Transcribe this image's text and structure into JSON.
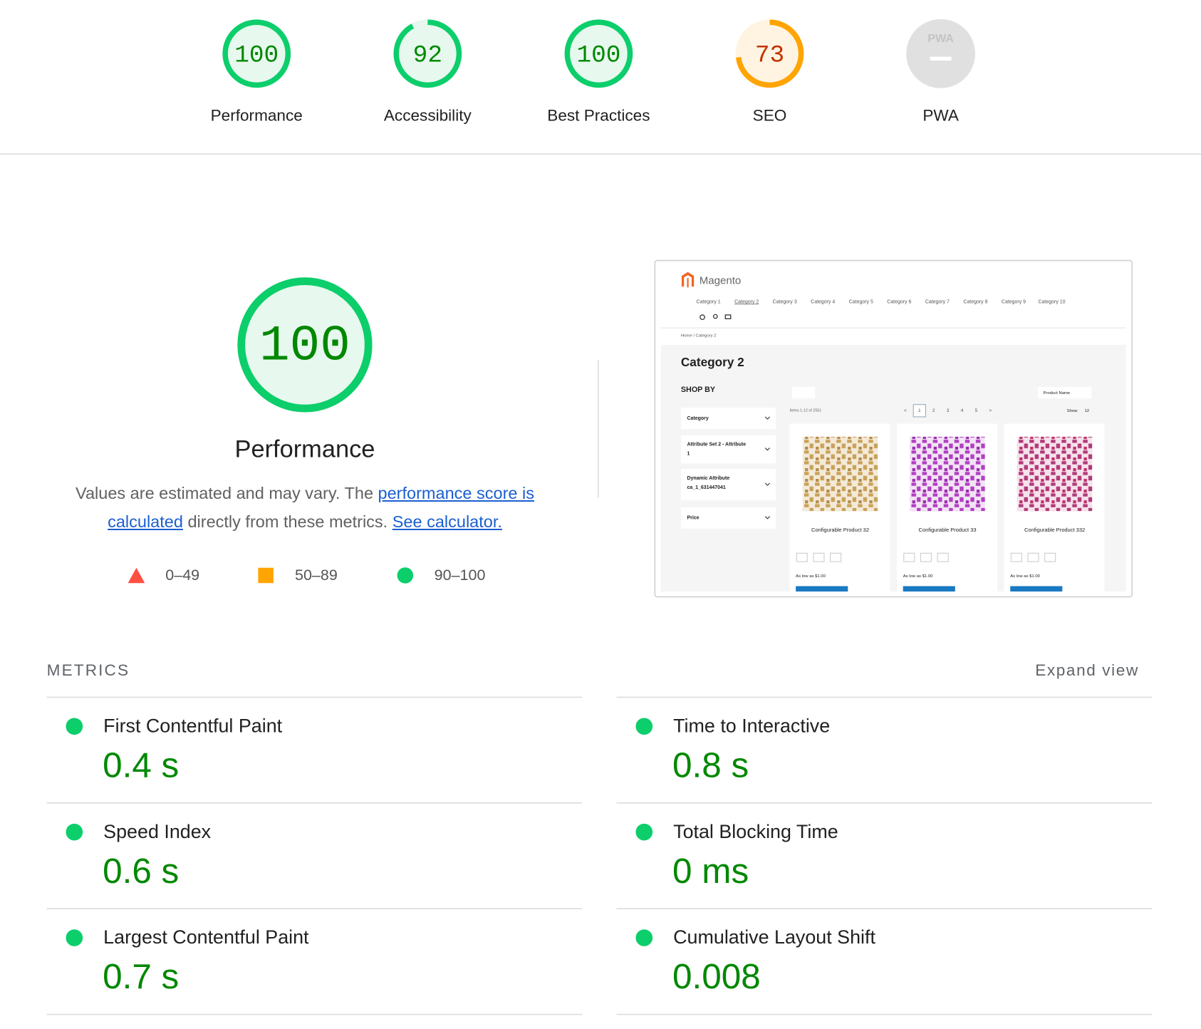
{
  "gauges": [
    {
      "score": 100,
      "label": "Performance",
      "rating": "pass"
    },
    {
      "score": 92,
      "label": "Accessibility",
      "rating": "pass"
    },
    {
      "score": 100,
      "label": "Best Practices",
      "rating": "pass"
    },
    {
      "score": 73,
      "label": "SEO",
      "rating": "average"
    },
    {
      "badge": "PWA",
      "label": "PWA"
    }
  ],
  "performance": {
    "score": 100,
    "title": "Performance",
    "rating": "pass",
    "description": {
      "text_before": "Values are estimated and may vary. The ",
      "link1": "performance score is calculated",
      "text_middle": " directly from these metrics. ",
      "link2": "See calculator."
    },
    "legend": [
      "0–49",
      "50–89",
      "90–100"
    ]
  },
  "screenshot": {
    "brand": "Magento",
    "nav": [
      "Category 1",
      "Category 2",
      "Category 3",
      "Category 4",
      "Category 5",
      "Category 6",
      "Category 7",
      "Category 8",
      "Category 9",
      "Category 10"
    ],
    "breadcrumb": "Home / Category 2",
    "heading": "Category 2",
    "shop_by": "SHOP BY",
    "filters": [
      "Category",
      "Attribute Set 2 - Attribute 1",
      "Dynamic Attribute ca_1_631447041",
      "Price"
    ],
    "items_count": "Items 1-12 of 2551",
    "pages": [
      "<",
      "1",
      "2",
      "3",
      "4",
      "5",
      ">"
    ],
    "sort": "Product Name",
    "show": "Show",
    "per_page": "12",
    "products": [
      {
        "name": "Configurable Product 32",
        "price": "As low as $1.00"
      },
      {
        "name": "Configurable Product 33",
        "price": "As low as $1.00"
      },
      {
        "name": "Configurable Product 332",
        "price": "As low as $1.00"
      }
    ]
  },
  "metrics": {
    "title": "METRICS",
    "toggle": "Expand view",
    "items": [
      {
        "label": "First Contentful Paint",
        "value": "0.4 s"
      },
      {
        "label": "Speed Index",
        "value": "0.6 s"
      },
      {
        "label": "Largest Contentful Paint",
        "value": "0.7 s"
      },
      {
        "label": "Time to Interactive",
        "value": "0.8 s"
      },
      {
        "label": "Total Blocking Time",
        "value": "0 ms"
      },
      {
        "label": "Cumulative Layout Shift",
        "value": "0.008"
      }
    ]
  }
}
